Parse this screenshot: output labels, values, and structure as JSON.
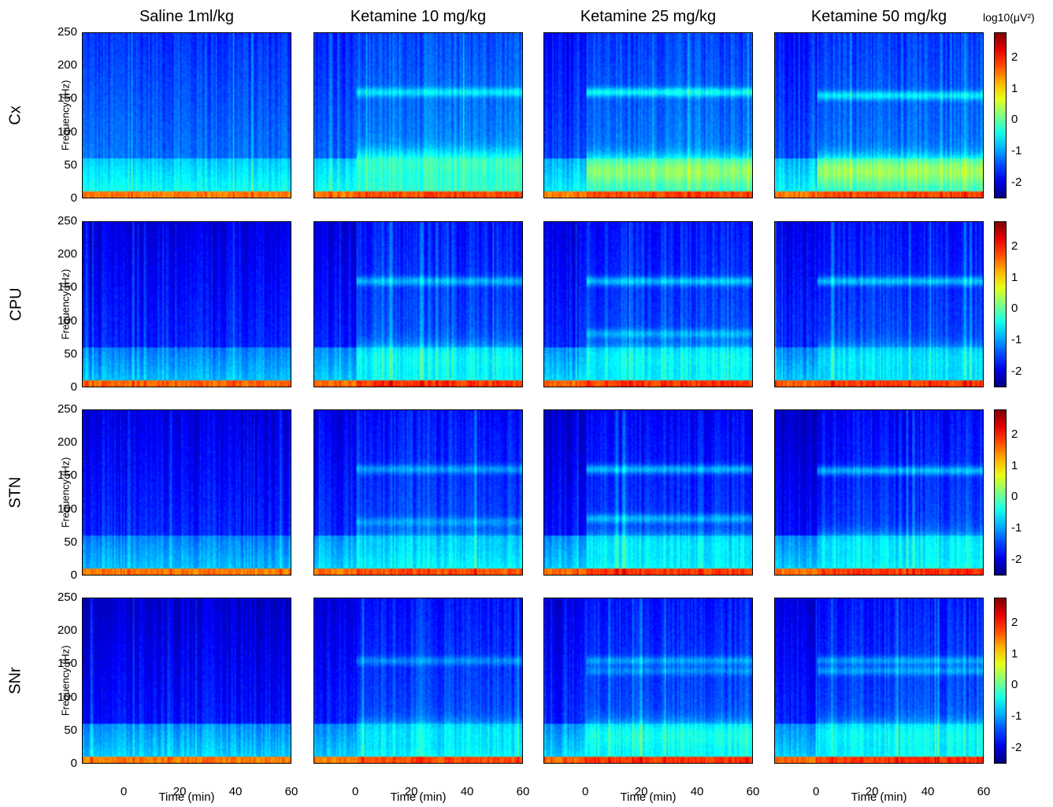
{
  "chart_data": {
    "type": "heatmap",
    "columns": [
      "Saline 1ml/kg",
      "Ketamine 10 mg/kg",
      "Ketamine 25 mg/kg",
      "Ketamine 50 mg/kg"
    ],
    "rows": [
      "Cx",
      "CPU",
      "STN",
      "SNr"
    ],
    "ylabel": "Frequency (Hz)",
    "xlabel": "Time (min)",
    "yticks": [
      0,
      50,
      100,
      150,
      200,
      250
    ],
    "xticks": [
      0,
      20,
      40,
      60
    ],
    "ylim": [
      0,
      250
    ],
    "xlim": [
      -15,
      60
    ],
    "colorbar": {
      "label": "log10(μV²)",
      "ticks": [
        -2,
        -1,
        0,
        1,
        2
      ],
      "range": [
        -2.5,
        2.8
      ],
      "colormap": "jet"
    },
    "panels": [
      {
        "row": "Cx",
        "column": "Saline 1ml/kg",
        "baseline_log_power": {
          "0-10Hz": 1.5,
          "10-60Hz": -0.8,
          "60-250Hz": -1.6
        },
        "post_injection_bands": []
      },
      {
        "row": "Cx",
        "column": "Ketamine 10 mg/kg",
        "baseline_log_power": {
          "0-10Hz": 1.5,
          "10-60Hz": -0.8,
          "60-250Hz": -1.7
        },
        "post_injection_bands": [
          {
            "freq_hz": 160,
            "log_power": -0.6
          },
          {
            "freq_hz": 50,
            "log_power": -0.2
          }
        ]
      },
      {
        "row": "Cx",
        "column": "Ketamine 25 mg/kg",
        "baseline_log_power": {
          "0-10Hz": 1.5,
          "10-60Hz": -0.9,
          "60-250Hz": -1.8
        },
        "post_injection_bands": [
          {
            "freq_hz": 160,
            "log_power": -0.5
          },
          {
            "freq_hz": 40,
            "log_power": 0.2
          }
        ]
      },
      {
        "row": "Cx",
        "column": "Ketamine 50 mg/kg",
        "baseline_log_power": {
          "0-10Hz": 1.5,
          "10-60Hz": -0.9,
          "60-250Hz": -1.8
        },
        "post_injection_bands": [
          {
            "freq_hz": 155,
            "log_power": -0.6
          },
          {
            "freq_hz": 40,
            "log_power": 0.3
          }
        ]
      },
      {
        "row": "CPU",
        "column": "Saline 1ml/kg",
        "baseline_log_power": {
          "0-10Hz": 1.6,
          "10-60Hz": -1.2,
          "60-250Hz": -2.0
        },
        "post_injection_bands": []
      },
      {
        "row": "CPU",
        "column": "Ketamine 10 mg/kg",
        "baseline_log_power": {
          "0-10Hz": 1.6,
          "10-60Hz": -1.1,
          "60-250Hz": -2.0
        },
        "post_injection_bands": [
          {
            "freq_hz": 160,
            "log_power": -0.9
          },
          {
            "freq_hz": 40,
            "log_power": -0.5
          }
        ]
      },
      {
        "row": "CPU",
        "column": "Ketamine 25 mg/kg",
        "baseline_log_power": {
          "0-10Hz": 1.6,
          "10-60Hz": -1.1,
          "60-250Hz": -2.0
        },
        "post_injection_bands": [
          {
            "freq_hz": 160,
            "log_power": -0.8
          },
          {
            "freq_hz": 80,
            "log_power": -0.9
          },
          {
            "freq_hz": 40,
            "log_power": -0.5
          }
        ]
      },
      {
        "row": "CPU",
        "column": "Ketamine 50 mg/kg",
        "baseline_log_power": {
          "0-10Hz": 1.6,
          "10-60Hz": -1.2,
          "60-250Hz": -2.0
        },
        "post_injection_bands": [
          {
            "freq_hz": 160,
            "log_power": -0.8
          },
          {
            "freq_hz": 40,
            "log_power": -0.6
          }
        ]
      },
      {
        "row": "STN",
        "column": "Saline 1ml/kg",
        "baseline_log_power": {
          "0-10Hz": 1.5,
          "10-60Hz": -1.2,
          "60-250Hz": -2.0
        },
        "post_injection_bands": []
      },
      {
        "row": "STN",
        "column": "Ketamine 10 mg/kg",
        "baseline_log_power": {
          "0-10Hz": 1.5,
          "10-60Hz": -1.1,
          "60-250Hz": -2.0
        },
        "post_injection_bands": [
          {
            "freq_hz": 160,
            "log_power": -1.0
          },
          {
            "freq_hz": 80,
            "log_power": -1.0
          },
          {
            "freq_hz": 40,
            "log_power": -0.7
          }
        ]
      },
      {
        "row": "STN",
        "column": "Ketamine 25 mg/kg",
        "baseline_log_power": {
          "0-10Hz": 1.6,
          "10-60Hz": -1.1,
          "60-250Hz": -2.1
        },
        "post_injection_bands": [
          {
            "freq_hz": 160,
            "log_power": -0.9
          },
          {
            "freq_hz": 85,
            "log_power": -0.9
          },
          {
            "freq_hz": 40,
            "log_power": -0.6
          }
        ]
      },
      {
        "row": "STN",
        "column": "Ketamine 50 mg/kg",
        "baseline_log_power": {
          "0-10Hz": 1.6,
          "10-60Hz": -1.1,
          "60-250Hz": -2.1
        },
        "post_injection_bands": [
          {
            "freq_hz": 158,
            "log_power": -0.9
          },
          {
            "freq_hz": 40,
            "log_power": -0.6
          }
        ]
      },
      {
        "row": "SNr",
        "column": "Saline 1ml/kg",
        "baseline_log_power": {
          "0-10Hz": 1.5,
          "10-60Hz": -1.1,
          "60-250Hz": -2.1
        },
        "post_injection_bands": []
      },
      {
        "row": "SNr",
        "column": "Ketamine 10 mg/kg",
        "baseline_log_power": {
          "0-10Hz": 1.5,
          "10-60Hz": -1.1,
          "60-250Hz": -2.0
        },
        "post_injection_bands": [
          {
            "freq_hz": 155,
            "log_power": -1.1
          },
          {
            "freq_hz": 40,
            "log_power": -0.6
          }
        ]
      },
      {
        "row": "SNr",
        "column": "Ketamine 25 mg/kg",
        "baseline_log_power": {
          "0-10Hz": 1.6,
          "10-60Hz": -1.1,
          "60-250Hz": -2.0
        },
        "post_injection_bands": [
          {
            "freq_hz": 155,
            "log_power": -1.0
          },
          {
            "freq_hz": 140,
            "log_power": -1.1
          },
          {
            "freq_hz": 40,
            "log_power": -0.4
          }
        ]
      },
      {
        "row": "SNr",
        "column": "Ketamine 50 mg/kg",
        "baseline_log_power": {
          "0-10Hz": 1.6,
          "10-60Hz": -1.1,
          "60-250Hz": -2.0
        },
        "post_injection_bands": [
          {
            "freq_hz": 155,
            "log_power": -1.0
          },
          {
            "freq_hz": 140,
            "log_power": -1.0
          },
          {
            "freq_hz": 40,
            "log_power": -0.5
          }
        ]
      }
    ]
  }
}
